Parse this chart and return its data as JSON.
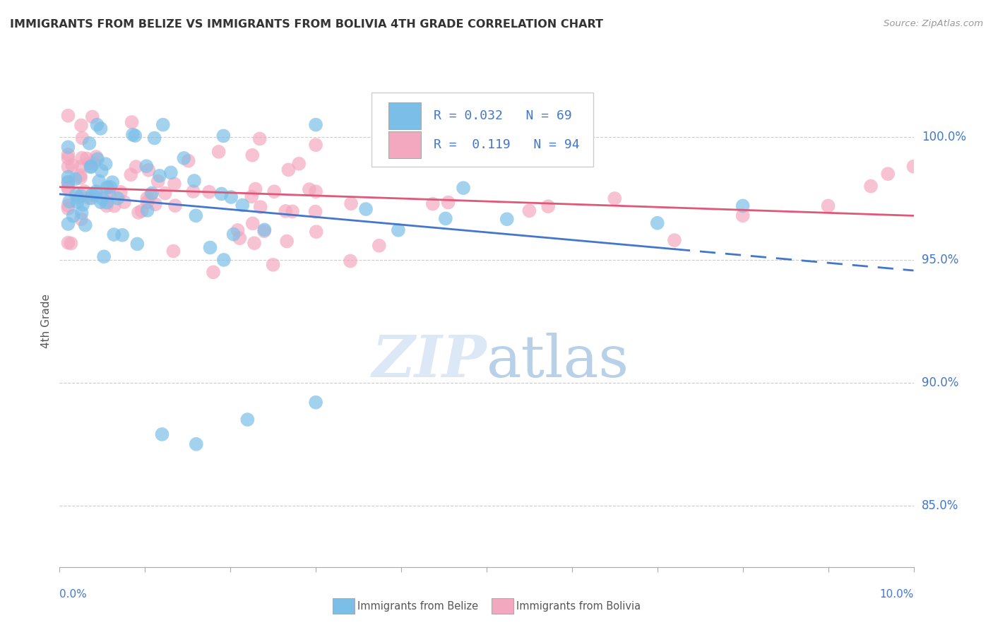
{
  "title": "IMMIGRANTS FROM BELIZE VS IMMIGRANTS FROM BOLIVIA 4TH GRADE CORRELATION CHART",
  "source": "Source: ZipAtlas.com",
  "ylabel": "4th Grade",
  "belize_R": 0.032,
  "belize_N": 69,
  "bolivia_R": 0.119,
  "bolivia_N": 94,
  "belize_color": "#7bbfe8",
  "bolivia_color": "#f4a8c0",
  "belize_line_color": "#4477cc",
  "bolivia_line_color": "#e05878",
  "ytick_labels": [
    "85.0%",
    "90.0%",
    "95.0%",
    "100.0%"
  ],
  "ytick_values": [
    0.85,
    0.9,
    0.95,
    1.0
  ],
  "xmin": 0.0,
  "xmax": 0.1,
  "ymin": 0.825,
  "ymax": 1.025,
  "legend_text_color": "#4477cc",
  "watermark_color": "#dce8f5"
}
